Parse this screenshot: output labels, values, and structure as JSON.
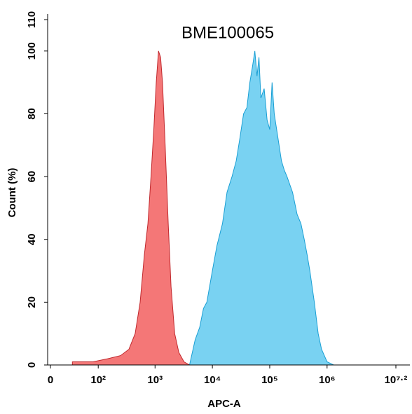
{
  "chart_data": {
    "type": "area",
    "title": "BME100065",
    "xlabel": "APC-A",
    "ylabel": "Count (%)",
    "xscale": "asinh",
    "xlim": [
      0,
      15848932
    ],
    "ylim": [
      0,
      110
    ],
    "xticks": [
      0,
      {
        "value": 100,
        "label": "10²"
      },
      {
        "value": 1000,
        "label": "10³"
      },
      {
        "value": 10000,
        "label": "10⁴"
      },
      {
        "value": 100000,
        "label": "10⁵"
      },
      {
        "value": 1000000,
        "label": "10⁶"
      },
      {
        "value": 15848932,
        "label": "10⁷·²"
      }
    ],
    "yticks": [
      0,
      20,
      40,
      60,
      80,
      100,
      110
    ],
    "series": [
      {
        "color": "#f04a4a",
        "stroke": "#c0282d",
        "x": [
          30,
          80,
          150,
          250,
          350,
          450,
          550,
          650,
          750,
          850,
          950,
          1050,
          1150,
          1250,
          1350,
          1500,
          1700,
          1900,
          2200,
          2600,
          3200,
          4000
        ],
        "values": [
          1,
          1,
          2,
          3,
          5,
          10,
          20,
          35,
          45,
          60,
          75,
          90,
          100,
          98,
          90,
          70,
          45,
          25,
          10,
          4,
          1,
          0
        ]
      },
      {
        "color": "#4cc3ee",
        "stroke": "#1a9fd4",
        "x": [
          4000,
          5000,
          6000,
          7000,
          8000,
          10000,
          12000,
          15000,
          18000,
          22000,
          26000,
          30000,
          35000,
          40000,
          45000,
          50000,
          55000,
          60000,
          65000,
          70000,
          80000,
          90000,
          100000,
          110000,
          120000,
          140000,
          160000,
          180000,
          200000,
          250000,
          300000,
          350000,
          400000,
          450000,
          500000,
          600000,
          700000,
          800000,
          1000000,
          1300000
        ],
        "values": [
          0,
          8,
          12,
          18,
          20,
          30,
          38,
          45,
          55,
          60,
          65,
          72,
          80,
          82,
          90,
          95,
          100,
          92,
          98,
          85,
          88,
          78,
          75,
          90,
          80,
          72,
          65,
          62,
          60,
          55,
          48,
          45,
          40,
          35,
          30,
          20,
          10,
          5,
          1,
          0
        ]
      }
    ]
  }
}
